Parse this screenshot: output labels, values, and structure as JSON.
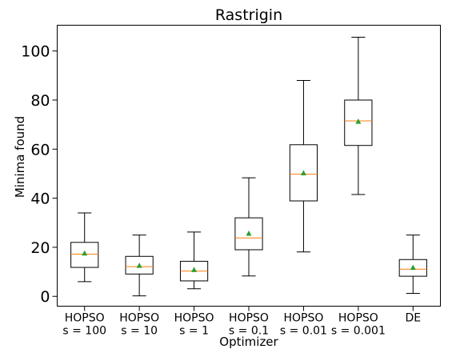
{
  "chart_data": {
    "type": "box",
    "title": "Rastrigin",
    "xlabel": "Optimizer",
    "ylabel": "Minima found",
    "ylim": [
      -4,
      110.5
    ],
    "yticks": [
      0,
      20,
      40,
      60,
      80,
      100
    ],
    "grid": false,
    "colors": {
      "box": "#000000",
      "median": "#ff7f0e",
      "mean": "#2ca02c"
    },
    "categories": [
      [
        "HOPSO",
        "s = 100"
      ],
      [
        "HOPSO",
        "s = 10"
      ],
      [
        "HOPSO",
        "s = 1"
      ],
      [
        "HOPSO",
        "s = 0.1"
      ],
      [
        "HOPSO",
        "s = 0.01"
      ],
      [
        "HOPSO",
        "s = 0.001"
      ],
      [
        "DE",
        ""
      ]
    ],
    "boxes": [
      {
        "whislo": 6,
        "q1": 11.8,
        "med": 17.2,
        "mean": 17.6,
        "q3": 22,
        "whishi": 34
      },
      {
        "whislo": 0.2,
        "q1": 9.1,
        "med": 12.1,
        "mean": 12.6,
        "q3": 16.3,
        "whishi": 25
      },
      {
        "whislo": 3.1,
        "q1": 6.3,
        "med": 10.3,
        "mean": 10.9,
        "q3": 14.3,
        "whishi": 26.2
      },
      {
        "whislo": 8.3,
        "q1": 19,
        "med": 23.8,
        "mean": 25.7,
        "q3": 32,
        "whishi": 48.3
      },
      {
        "whislo": 18.1,
        "q1": 38.9,
        "med": 49.8,
        "mean": 50.3,
        "q3": 61.8,
        "whishi": 88
      },
      {
        "whislo": 41.5,
        "q1": 61.5,
        "med": 71.5,
        "mean": 71.3,
        "q3": 80,
        "whishi": 105.6
      },
      {
        "whislo": 1.2,
        "q1": 8.2,
        "med": 11.1,
        "mean": 11.8,
        "q3": 15,
        "whishi": 25
      }
    ]
  }
}
